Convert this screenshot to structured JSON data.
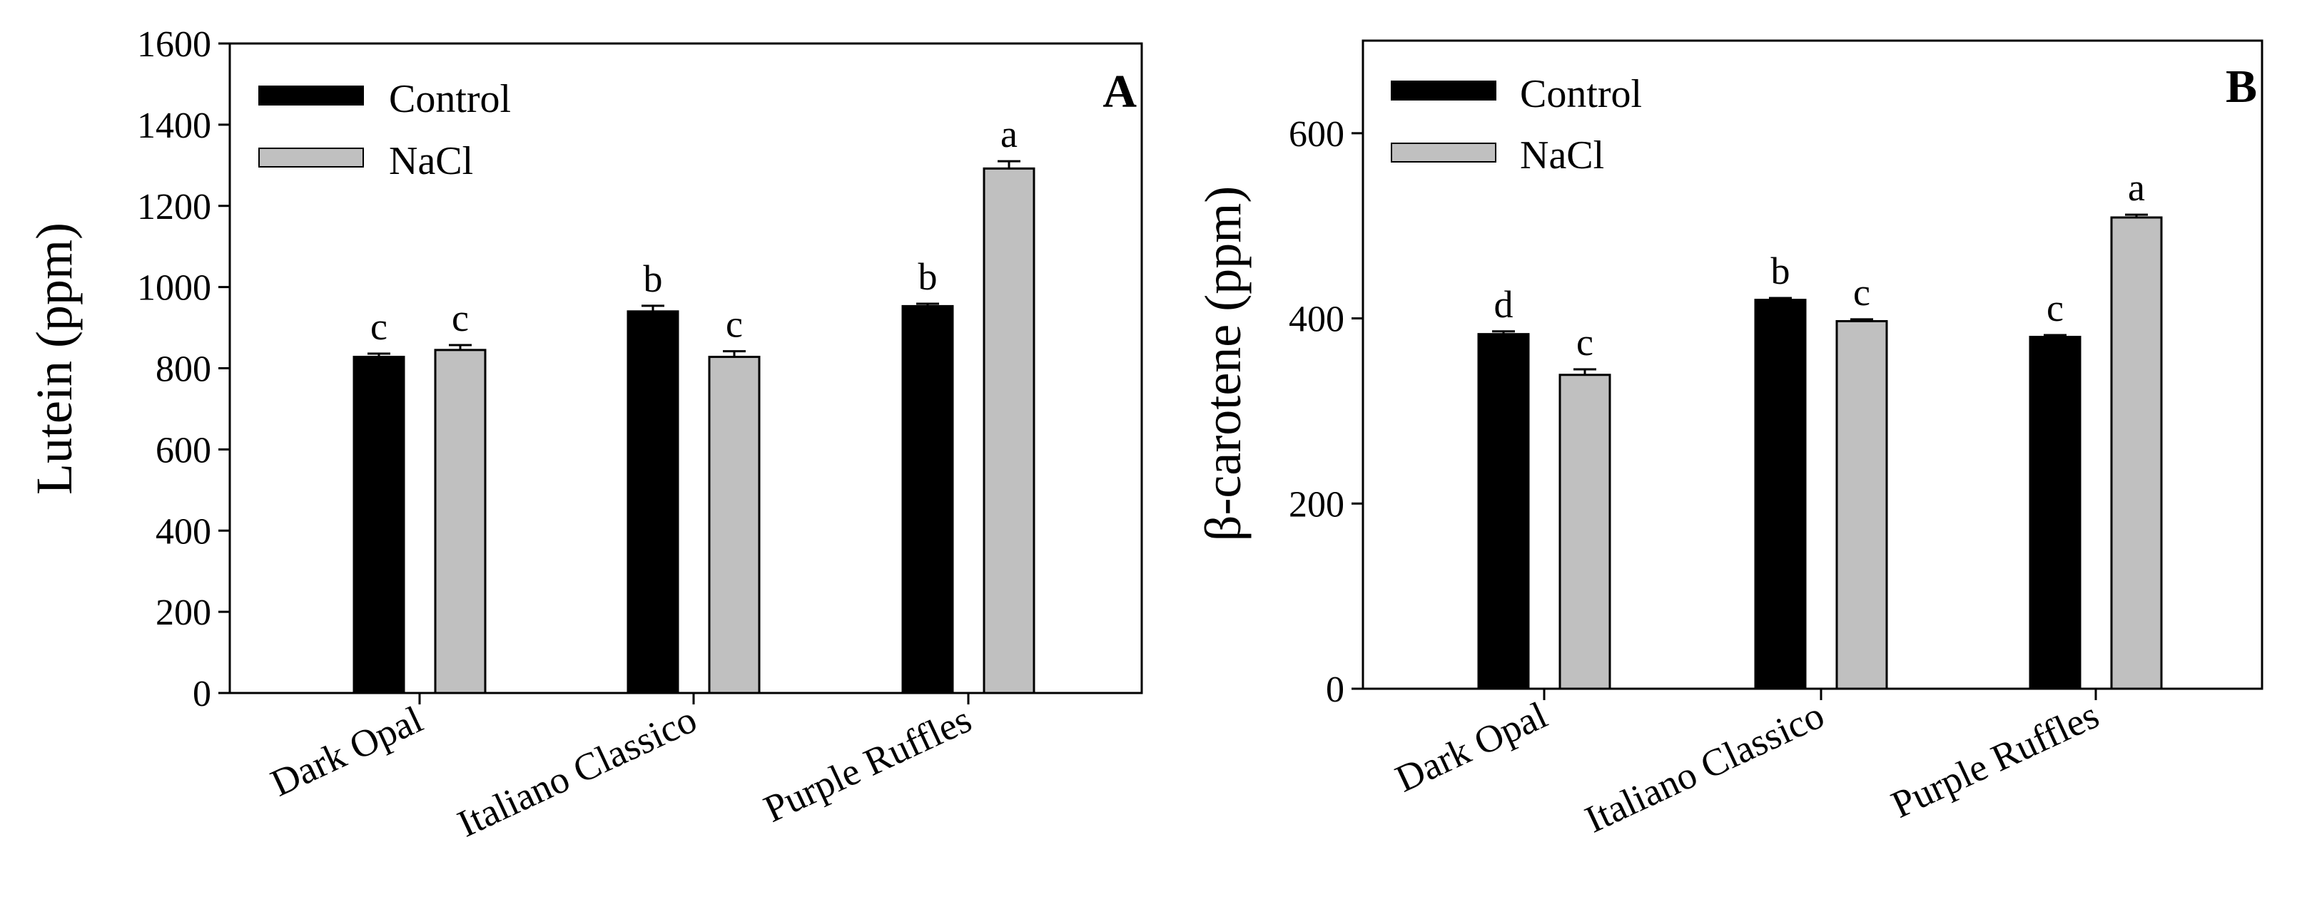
{
  "figure": {
    "background": "#ffffff"
  },
  "chart_data": [
    {
      "type": "bar",
      "panel_label": "A",
      "title": "",
      "xlabel": "",
      "ylabel": "Lutein (ppm)",
      "ylim": [
        0,
        1600
      ],
      "yticks": [
        "0",
        "200",
        "400",
        "600",
        "800",
        "1000",
        "1200",
        "1400",
        "1600"
      ],
      "grid": false,
      "legend_position": "top-left",
      "categories": [
        "Dark Opal",
        "Italiano Classico",
        "Purple Ruffles"
      ],
      "series": [
        {
          "name": "Control",
          "color": "#000000",
          "values": [
            828,
            940,
            953
          ],
          "errors": [
            8,
            14,
            6
          ],
          "letters": [
            "c",
            "b",
            "b"
          ]
        },
        {
          "name": "NaCl",
          "color": "#c0c0c0",
          "values": [
            845,
            828,
            1292
          ],
          "errors": [
            12,
            14,
            18
          ],
          "letters": [
            "c",
            "c",
            "a"
          ]
        }
      ]
    },
    {
      "type": "bar",
      "panel_label": "B",
      "title": "",
      "xlabel": "",
      "ylabel": "β-carotene (ppm)",
      "ylim": [
        0,
        700
      ],
      "yticks": [
        "0",
        "200",
        "400",
        "600"
      ],
      "grid": false,
      "legend_position": "top-left",
      "categories": [
        "Dark Opal",
        "Italiano Classico",
        "Purple Ruffles"
      ],
      "series": [
        {
          "name": "Control",
          "color": "#000000",
          "values": [
            383,
            420,
            380
          ],
          "errors": [
            3,
            2,
            2
          ],
          "letters": [
            "d",
            "b",
            "c"
          ]
        },
        {
          "name": "NaCl",
          "color": "#c0c0c0",
          "values": [
            339,
            397,
            509
          ],
          "errors": [
            6,
            2,
            3
          ],
          "letters": [
            "c",
            "c",
            "a"
          ]
        }
      ]
    }
  ]
}
